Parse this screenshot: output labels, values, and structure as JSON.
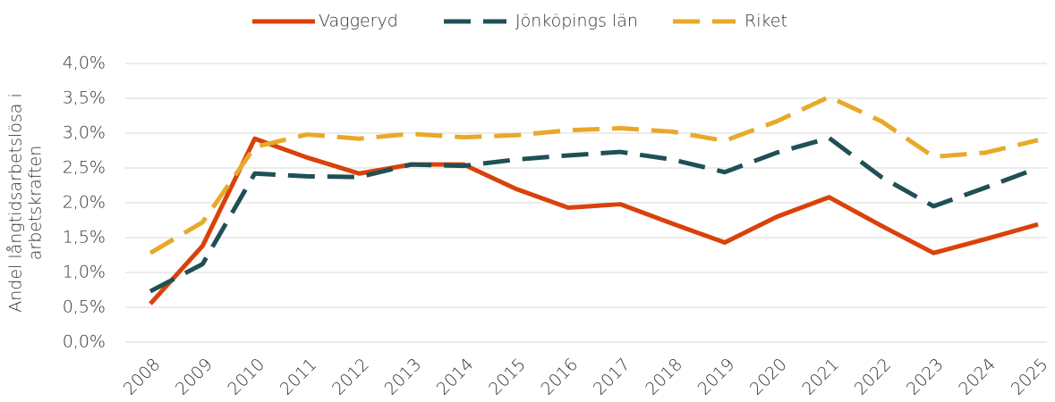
{
  "chart_data": {
    "type": "line",
    "ylabel": [
      "Andel långtidsarbetslösa i",
      "arbetskraften"
    ],
    "categories": [
      "2008",
      "2009",
      "2010",
      "2011",
      "2012",
      "2013",
      "2014",
      "2015",
      "2016",
      "2017",
      "2018",
      "2019",
      "2020",
      "2021",
      "2022",
      "2023",
      "2024",
      "2025"
    ],
    "series": [
      {
        "name": "Vaggeryd",
        "color": "#d9420b",
        "dashed": false,
        "values": [
          0.55,
          1.38,
          2.92,
          2.65,
          2.42,
          2.55,
          2.55,
          2.2,
          1.93,
          1.98,
          1.7,
          1.43,
          1.8,
          2.08,
          1.67,
          1.28,
          1.48,
          1.69
        ]
      },
      {
        "name": "Jönköpings län",
        "color": "#1f5055",
        "dashed": true,
        "values": [
          0.73,
          1.12,
          2.42,
          2.38,
          2.37,
          2.55,
          2.53,
          2.62,
          2.68,
          2.73,
          2.62,
          2.44,
          2.72,
          2.93,
          2.37,
          1.95,
          2.22,
          2.5
        ]
      },
      {
        "name": "Riket",
        "color": "#e8a92a",
        "dashed": true,
        "values": [
          1.28,
          1.72,
          2.8,
          2.98,
          2.92,
          2.99,
          2.94,
          2.97,
          3.04,
          3.07,
          3.02,
          2.89,
          3.17,
          3.52,
          3.17,
          2.66,
          2.72,
          2.9
        ]
      }
    ],
    "ylim": [
      0,
      4
    ],
    "yticks": [
      {
        "value": 0,
        "label": "0,0%"
      },
      {
        "value": 0.5,
        "label": "0,5%"
      },
      {
        "value": 1,
        "label": "1,0%"
      },
      {
        "value": 1.5,
        "label": "1,5%"
      },
      {
        "value": 2,
        "label": "2,0%"
      },
      {
        "value": 2.5,
        "label": "2,5%"
      },
      {
        "value": 3,
        "label": "3,0%"
      },
      {
        "value": 3.5,
        "label": "3,5%"
      },
      {
        "value": 4,
        "label": "4,0%"
      }
    ],
    "grid": true,
    "legend": "top"
  }
}
